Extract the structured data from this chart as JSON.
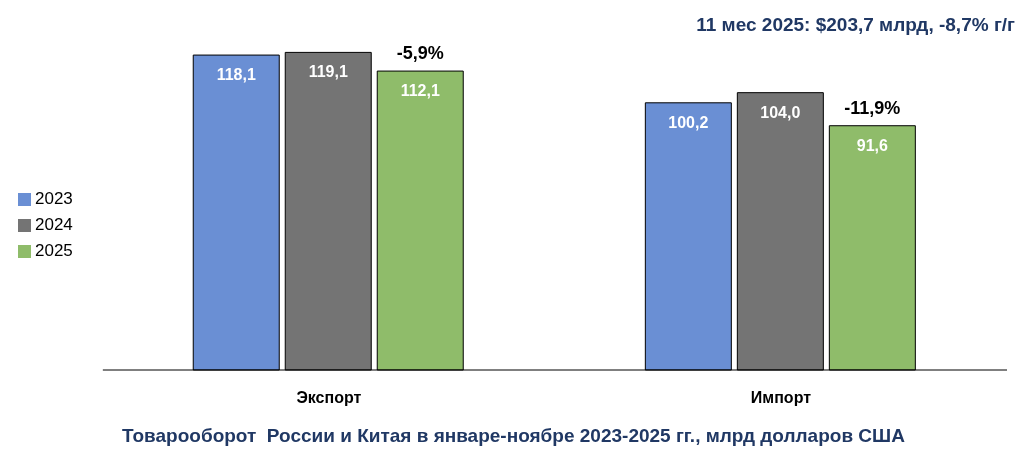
{
  "chart_data": {
    "type": "bar",
    "title": "Товарооборот  России и Китая в январе-ноябре 2023-2025 гг., млрд долларов США",
    "subtitle": "11 мес 2025: $203,7 млрд, -8,7% г/г",
    "categories": [
      "Экспорт",
      "Импорт"
    ],
    "series": [
      {
        "name": "2023",
        "color": "#6a8fd4",
        "values": [
          118.1,
          100.2
        ],
        "value_labels": [
          "118,1",
          "100,2"
        ]
      },
      {
        "name": "2024",
        "color": "#747474",
        "values": [
          119.1,
          104.0
        ],
        "value_labels": [
          "119,1",
          "104,0"
        ]
      },
      {
        "name": "2025",
        "color": "#8fbc6a",
        "values": [
          112.1,
          91.6
        ],
        "value_labels": [
          "112,1",
          "91,6"
        ]
      }
    ],
    "annotations": [
      "-5,9%",
      "-11,9%"
    ],
    "legend": "left"
  }
}
